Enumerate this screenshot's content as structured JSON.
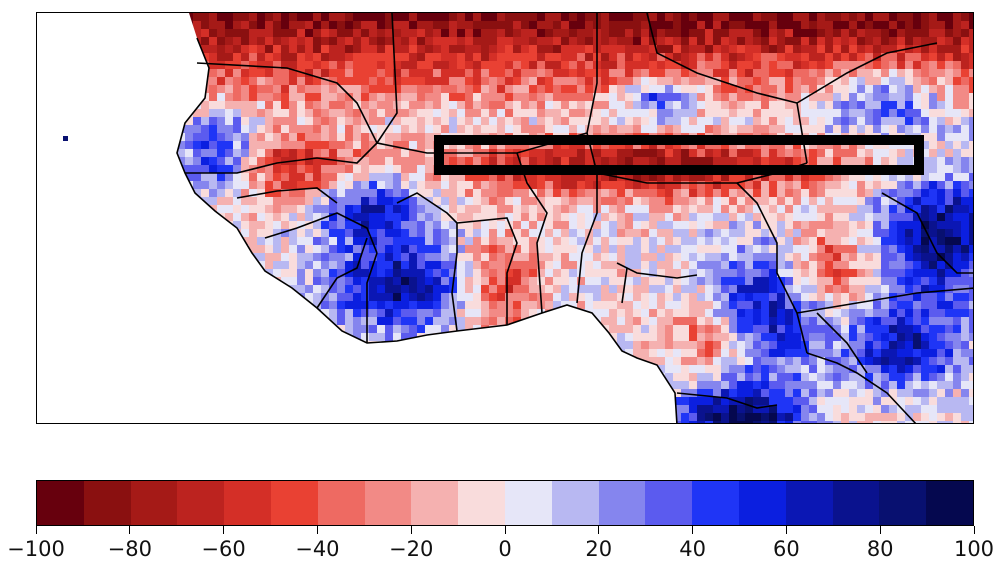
{
  "map": {
    "region": "West Africa",
    "land_colormap_levels": 20,
    "highlight_box_color": "#000000"
  },
  "colorbar": {
    "min": -100,
    "max": 100,
    "step": 10,
    "colors": [
      "#67000d",
      "#8a1010",
      "#a51a17",
      "#bc231f",
      "#d42f27",
      "#e94133",
      "#ee6a62",
      "#f28a86",
      "#f5b1b0",
      "#f9dcdc",
      "#e6e6f8",
      "#b8b8f2",
      "#8585ee",
      "#5b5bef",
      "#1f35f6",
      "#0b1fe0",
      "#0b17b4",
      "#0a128e",
      "#081070",
      "#05084f"
    ],
    "tick_labels": [
      "−100",
      "−80",
      "−60",
      "−40",
      "−20",
      "0",
      "20",
      "40",
      "60",
      "80",
      "100"
    ]
  }
}
